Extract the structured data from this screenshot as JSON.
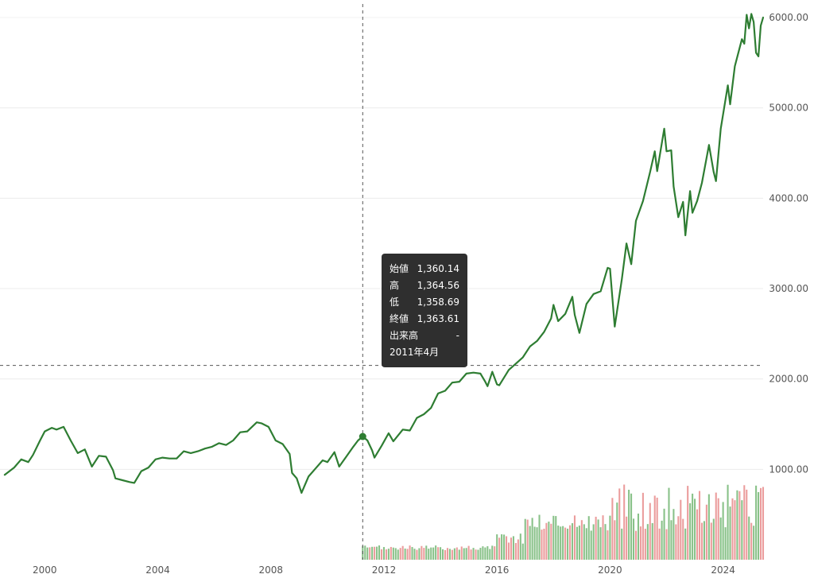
{
  "chart_data": {
    "type": "line",
    "title": "",
    "xlabel": "",
    "ylabel": "",
    "x_tick_labels": [
      "2000",
      "2004",
      "2008",
      "2012",
      "2016",
      "2020",
      "2024"
    ],
    "y_tick_labels": [
      "1000.00",
      "2000.00",
      "3000.00",
      "4000.00",
      "5000.00",
      "6000.00"
    ],
    "xlim": [
      "1998-06",
      "2025-06"
    ],
    "ylim": [
      0,
      6150
    ],
    "grid": "horizontal",
    "line_color": "#2e7d32",
    "volume_up_color": "#88c188",
    "volume_down_color": "#eb9c9c",
    "crosshair": {
      "date": "2011-04",
      "value": 2150
    },
    "series": [
      {
        "values": [
          [
            "1998-08",
            940
          ],
          [
            "1998-12",
            1020
          ],
          [
            "1999-03",
            1110
          ],
          [
            "1999-06",
            1080
          ],
          [
            "1999-08",
            1160
          ],
          [
            "1999-11",
            1320
          ],
          [
            "2000-01",
            1420
          ],
          [
            "2000-04",
            1460
          ],
          [
            "2000-06",
            1440
          ],
          [
            "2000-09",
            1470
          ],
          [
            "2000-12",
            1320
          ],
          [
            "2001-03",
            1180
          ],
          [
            "2001-06",
            1220
          ],
          [
            "2001-09",
            1030
          ],
          [
            "2001-12",
            1150
          ],
          [
            "2002-03",
            1140
          ],
          [
            "2002-06",
            990
          ],
          [
            "2002-07",
            900
          ],
          [
            "2002-10",
            880
          ],
          [
            "2003-01",
            860
          ],
          [
            "2003-03",
            850
          ],
          [
            "2003-06",
            980
          ],
          [
            "2003-09",
            1020
          ],
          [
            "2003-12",
            1110
          ],
          [
            "2004-03",
            1130
          ],
          [
            "2004-06",
            1120
          ],
          [
            "2004-09",
            1120
          ],
          [
            "2004-12",
            1200
          ],
          [
            "2005-03",
            1180
          ],
          [
            "2005-06",
            1200
          ],
          [
            "2005-09",
            1230
          ],
          [
            "2005-12",
            1250
          ],
          [
            "2006-03",
            1290
          ],
          [
            "2006-06",
            1270
          ],
          [
            "2006-09",
            1320
          ],
          [
            "2006-12",
            1410
          ],
          [
            "2007-03",
            1420
          ],
          [
            "2007-07",
            1520
          ],
          [
            "2007-09",
            1510
          ],
          [
            "2007-12",
            1470
          ],
          [
            "2008-03",
            1320
          ],
          [
            "2008-06",
            1280
          ],
          [
            "2008-09",
            1170
          ],
          [
            "2008-10",
            960
          ],
          [
            "2008-12",
            900
          ],
          [
            "2009-02",
            740
          ],
          [
            "2009-05",
            920
          ],
          [
            "2009-08",
            1010
          ],
          [
            "2009-11",
            1100
          ],
          [
            "2010-01",
            1080
          ],
          [
            "2010-04",
            1190
          ],
          [
            "2010-06",
            1030
          ],
          [
            "2010-09",
            1140
          ],
          [
            "2010-12",
            1250
          ],
          [
            "2011-02",
            1320
          ],
          [
            "2011-04",
            1363.61
          ],
          [
            "2011-06",
            1320
          ],
          [
            "2011-08",
            1210
          ],
          [
            "2011-09",
            1130
          ],
          [
            "2011-12",
            1260
          ],
          [
            "2012-03",
            1400
          ],
          [
            "2012-05",
            1310
          ],
          [
            "2012-09",
            1440
          ],
          [
            "2012-12",
            1430
          ],
          [
            "2013-03",
            1570
          ],
          [
            "2013-06",
            1610
          ],
          [
            "2013-09",
            1680
          ],
          [
            "2013-12",
            1840
          ],
          [
            "2014-03",
            1870
          ],
          [
            "2014-06",
            1960
          ],
          [
            "2014-09",
            1970
          ],
          [
            "2014-12",
            2060
          ],
          [
            "2015-03",
            2070
          ],
          [
            "2015-06",
            2060
          ],
          [
            "2015-08",
            1970
          ],
          [
            "2015-09",
            1920
          ],
          [
            "2015-11",
            2080
          ],
          [
            "2016-01",
            1940
          ],
          [
            "2016-02",
            1930
          ],
          [
            "2016-06",
            2100
          ],
          [
            "2016-09",
            2170
          ],
          [
            "2016-12",
            2240
          ],
          [
            "2017-03",
            2360
          ],
          [
            "2017-06",
            2420
          ],
          [
            "2017-09",
            2520
          ],
          [
            "2017-12",
            2670
          ],
          [
            "2018-01",
            2820
          ],
          [
            "2018-03",
            2640
          ],
          [
            "2018-06",
            2720
          ],
          [
            "2018-09",
            2910
          ],
          [
            "2018-10",
            2710
          ],
          [
            "2018-12",
            2510
          ],
          [
            "2019-03",
            2830
          ],
          [
            "2019-06",
            2940
          ],
          [
            "2019-09",
            2970
          ],
          [
            "2019-12",
            3230
          ],
          [
            "2020-01",
            3220
          ],
          [
            "2020-03",
            2580
          ],
          [
            "2020-06",
            3100
          ],
          [
            "2020-08",
            3500
          ],
          [
            "2020-10",
            3270
          ],
          [
            "2020-12",
            3750
          ],
          [
            "2021-03",
            3970
          ],
          [
            "2021-06",
            4290
          ],
          [
            "2021-08",
            4520
          ],
          [
            "2021-09",
            4300
          ],
          [
            "2021-12",
            4770
          ],
          [
            "2022-01",
            4520
          ],
          [
            "2022-03",
            4530
          ],
          [
            "2022-04",
            4130
          ],
          [
            "2022-06",
            3790
          ],
          [
            "2022-08",
            3960
          ],
          [
            "2022-09",
            3590
          ],
          [
            "2022-11",
            4080
          ],
          [
            "2022-12",
            3840
          ],
          [
            "2023-02",
            3970
          ],
          [
            "2023-04",
            4170
          ],
          [
            "2023-07",
            4590
          ],
          [
            "2023-09",
            4290
          ],
          [
            "2023-10",
            4190
          ],
          [
            "2023-12",
            4770
          ],
          [
            "2024-03",
            5250
          ],
          [
            "2024-04",
            5040
          ],
          [
            "2024-06",
            5460
          ],
          [
            "2024-09",
            5760
          ],
          [
            "2024-10",
            5710
          ],
          [
            "2024-11",
            6030
          ],
          [
            "2024-12",
            5880
          ],
          [
            "2025-01",
            6040
          ],
          [
            "2025-02",
            5950
          ],
          [
            "2025-03",
            5610
          ],
          [
            "2025-04",
            5570
          ],
          [
            "2025-05",
            5910
          ],
          [
            "2025-06",
            6000
          ]
        ]
      }
    ],
    "volume": {
      "start": "2011-04",
      "end": "2025-06",
      "seed": 42
    }
  },
  "tooltip": {
    "open_label": "始値",
    "open_value": "1,360.14",
    "high_label": "高",
    "high_value": "1,364.56",
    "low_label": "低",
    "low_value": "1,358.69",
    "close_label": "終値",
    "close_value": "1,363.61",
    "volume_label": "出来高",
    "volume_value": "-",
    "date": "2011年4月"
  }
}
